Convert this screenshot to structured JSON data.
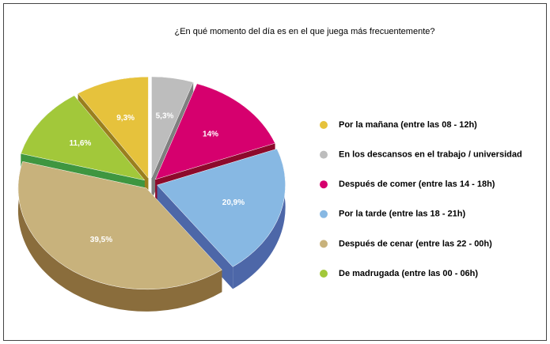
{
  "chart_data": {
    "type": "pie3d",
    "title": "¿En qué momento del día es en el que juega más frecuentemente?",
    "categories": [
      "Por la mañana (entre las 08 - 12h)",
      "En los descansos en el trabajo / universidad",
      "Después de comer (entre las 14 - 18h)",
      "Por la tarde (entre las 18 - 21h)",
      "Después de cenar (entre las 22 - 00h)",
      "De madrugada (entre las 00 - 06h)"
    ],
    "values": [
      9.3,
      5.3,
      14,
      20.9,
      39.5,
      11.6
    ],
    "value_labels": [
      "9,3%",
      "5,3%",
      "14%",
      "20,9%",
      "39,5%",
      "11,6%"
    ],
    "colors": [
      "#e6c23c",
      "#bdbdbd",
      "#d6006e",
      "#87b8e3",
      "#c8b27c",
      "#a2c83a"
    ],
    "side_colors": [
      "#9a7f1e",
      "#7f7f7f",
      "#8d0a2c",
      "#4d67a8",
      "#8a6d3c",
      "#3f9640"
    ],
    "legend": "right"
  }
}
